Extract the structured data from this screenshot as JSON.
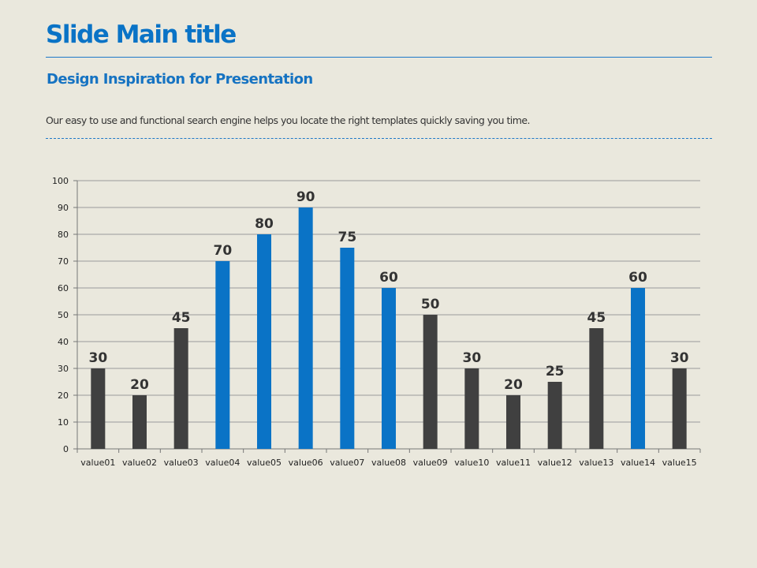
{
  "slide": {
    "title": "Slide Main title",
    "subtitle": "Design Inspiration for Presentation",
    "description": "Our easy to use and functional search engine helps you locate the right templates quickly saving you time."
  },
  "colors": {
    "background": "#EAE8DD",
    "accent": "#0A73C6",
    "dark_bar": "#404040",
    "blue_bar": "#0A73C6",
    "grid": "#9A9A9A"
  },
  "chart_data": {
    "type": "bar",
    "categories": [
      "value01",
      "value02",
      "value03",
      "value04",
      "value05",
      "value06",
      "value07",
      "value08",
      "value09",
      "value10",
      "value11",
      "value12",
      "value13",
      "value14",
      "value15"
    ],
    "values": [
      30,
      20,
      45,
      70,
      80,
      90,
      75,
      60,
      50,
      30,
      20,
      25,
      45,
      60,
      30
    ],
    "bar_colors": [
      "#404040",
      "#404040",
      "#404040",
      "#0A73C6",
      "#0A73C6",
      "#0A73C6",
      "#0A73C6",
      "#0A73C6",
      "#404040",
      "#404040",
      "#404040",
      "#404040",
      "#404040",
      "#0A73C6",
      "#404040"
    ],
    "data_labels": [
      "30",
      "20",
      "45",
      "70",
      "80",
      "90",
      "75",
      "60",
      "50",
      "30",
      "20",
      "25",
      "45",
      "60",
      "30"
    ],
    "yticks": [
      "0",
      "10",
      "20",
      "30",
      "40",
      "50",
      "60",
      "70",
      "80",
      "90",
      "100"
    ],
    "ylim": [
      0,
      100
    ],
    "grid": true,
    "legend": "none"
  }
}
